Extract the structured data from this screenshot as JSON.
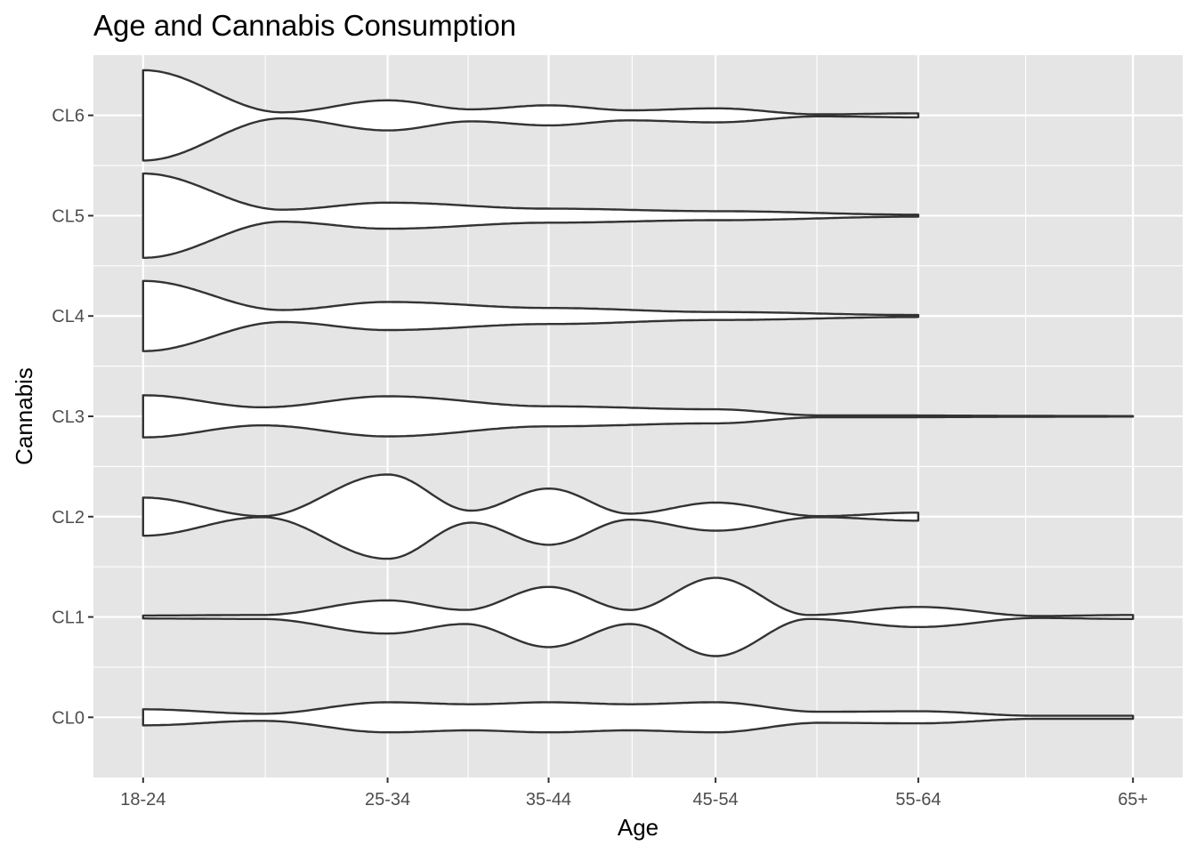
{
  "chart_data": {
    "type": "violin",
    "title": "Age and Cannabis Consumption",
    "xlabel": "Age",
    "ylabel": "Cannabis",
    "x_categories": [
      "18-24",
      "25-34",
      "35-44",
      "45-54",
      "55-64",
      "65+"
    ],
    "x_tick_positions": [
      0,
      1.23,
      2.04,
      2.88,
      3.9,
      4.98
    ],
    "x_range": [
      -0.25,
      5.23
    ],
    "y_categories": [
      "CL0",
      "CL1",
      "CL2",
      "CL3",
      "CL4",
      "CL5",
      "CL6"
    ],
    "y_range": [
      -0.6,
      6.6
    ],
    "grid": true,
    "legend": "none",
    "colors": {
      "panel": "#e5e5e5",
      "grid": "#ffffff",
      "fill": "#ffffff",
      "outline": "#333333"
    },
    "series": [
      {
        "name": "CL0",
        "profile": [
          [
            0,
            0.08
          ],
          [
            0.6,
            0.035
          ],
          [
            1.23,
            0.15
          ],
          [
            1.65,
            0.13
          ],
          [
            2.04,
            0.15
          ],
          [
            2.45,
            0.13
          ],
          [
            2.88,
            0.15
          ],
          [
            3.4,
            0.055
          ],
          [
            3.9,
            0.06
          ],
          [
            4.5,
            0.015
          ],
          [
            4.98,
            0.015
          ]
        ]
      },
      {
        "name": "CL1",
        "profile": [
          [
            0,
            0.015
          ],
          [
            0.6,
            0.02
          ],
          [
            1.23,
            0.165
          ],
          [
            1.62,
            0.07
          ],
          [
            2.04,
            0.3
          ],
          [
            2.45,
            0.07
          ],
          [
            2.88,
            0.39
          ],
          [
            3.35,
            0.02
          ],
          [
            3.9,
            0.1
          ],
          [
            4.5,
            0.01
          ],
          [
            4.98,
            0.02
          ]
        ]
      },
      {
        "name": "CL2",
        "profile": [
          [
            0,
            0.19
          ],
          [
            0.6,
            0.005
          ],
          [
            1.23,
            0.42
          ],
          [
            1.65,
            0.06
          ],
          [
            2.04,
            0.28
          ],
          [
            2.45,
            0.03
          ],
          [
            2.88,
            0.14
          ],
          [
            3.4,
            0.005
          ],
          [
            3.9,
            0.04
          ]
        ]
      },
      {
        "name": "CL3",
        "profile": [
          [
            0,
            0.21
          ],
          [
            0.6,
            0.09
          ],
          [
            1.23,
            0.2
          ],
          [
            2.04,
            0.1
          ],
          [
            2.88,
            0.07
          ],
          [
            3.4,
            0.01
          ],
          [
            4.98,
            0.003
          ]
        ]
      },
      {
        "name": "CL4",
        "profile": [
          [
            0,
            0.35
          ],
          [
            0.7,
            0.06
          ],
          [
            1.23,
            0.14
          ],
          [
            2.04,
            0.08
          ],
          [
            2.88,
            0.04
          ],
          [
            3.9,
            0.01
          ]
        ]
      },
      {
        "name": "CL5",
        "profile": [
          [
            0,
            0.42
          ],
          [
            0.7,
            0.06
          ],
          [
            1.23,
            0.13
          ],
          [
            2.04,
            0.07
          ],
          [
            2.88,
            0.045
          ],
          [
            3.9,
            0.01
          ]
        ]
      },
      {
        "name": "CL6",
        "profile": [
          [
            0,
            0.45
          ],
          [
            0.7,
            0.03
          ],
          [
            1.23,
            0.15
          ],
          [
            1.65,
            0.06
          ],
          [
            2.04,
            0.1
          ],
          [
            2.45,
            0.05
          ],
          [
            2.88,
            0.07
          ],
          [
            3.4,
            0.01
          ],
          [
            3.9,
            0.02
          ]
        ]
      }
    ]
  }
}
